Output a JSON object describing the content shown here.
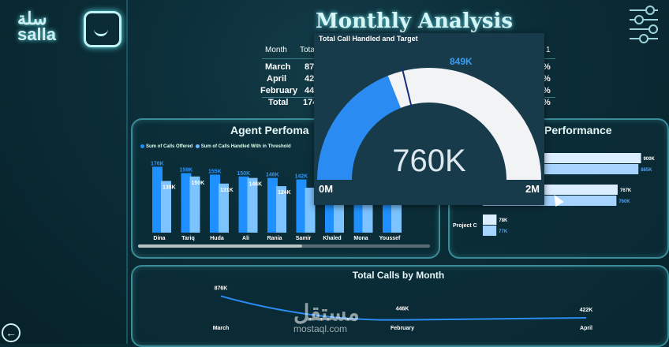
{
  "header": {
    "title": "Monthly Analysis"
  },
  "brand": {
    "logo_text": "سلة salla"
  },
  "monthly_table": {
    "headers": [
      "Month",
      "Tota",
      "1"
    ],
    "rows": [
      {
        "month": "March",
        "total": "87",
        "pct": "%"
      },
      {
        "month": "April",
        "total": "42",
        "pct": "%"
      },
      {
        "month": "February",
        "total": "44",
        "pct": "%"
      },
      {
        "month": "Total",
        "total": "174",
        "pct": "%"
      }
    ]
  },
  "agent_panel": {
    "title": "Agent Perfoma",
    "legend": [
      "Sum of Calls Offered",
      "Sum of Calls Handled With in Threshold"
    ]
  },
  "project_panel": {
    "title": "Performance",
    "project_c_label": "Project C"
  },
  "gauge": {
    "title": "Total Call Handled and Target",
    "value_label": "760K",
    "target_label": "849K",
    "min_label": "0M",
    "max_label": "2M",
    "value": 760,
    "target": 849,
    "max": 2000
  },
  "calls_panel": {
    "title": "Total Calls by Month"
  },
  "watermark": {
    "arabic": "مستقل",
    "latin": "mostaql.com"
  },
  "colors": {
    "offered": "#1e90ff",
    "handled": "#7cc3ff",
    "gauge_fill": "#2a8cf3",
    "gauge_empty": "#f1f3f5"
  },
  "chart_data": [
    {
      "type": "bar",
      "title": "Agent Perfoma",
      "categories": [
        "Dina",
        "Tariq",
        "Huda",
        "Ali",
        "Rania",
        "Samir",
        "Khaled",
        "Mona",
        "Youssef"
      ],
      "series": [
        {
          "name": "Sum of Calls Offered",
          "values": [
            176,
            159,
            155,
            150,
            146,
            142,
            120,
            112,
            100
          ],
          "labels": [
            "176K",
            "159K",
            "155K",
            "150K",
            "146K",
            "142K",
            "",
            "",
            ""
          ]
        },
        {
          "name": "Sum of Calls Handled With in Threshold",
          "values": [
            138,
            150,
            131,
            146,
            124,
            120,
            108,
            100,
            88
          ],
          "labels": [
            "138K",
            "150K",
            "131K",
            "146K",
            "124K",
            "",
            "",
            "",
            ""
          ]
        }
      ]
    },
    {
      "type": "bar",
      "title": "Performance",
      "categories": [
        "",
        "",
        "Project C"
      ],
      "series": [
        {
          "values": [
            900,
            767,
            78
          ],
          "labels": [
            "900K",
            "767K",
            "78K"
          ]
        },
        {
          "values": [
            885,
            760,
            77
          ],
          "labels": [
            "885K",
            "760K",
            "77K"
          ]
        }
      ]
    },
    {
      "type": "line",
      "title": "Total Calls by Month",
      "categories": [
        "March",
        "February",
        "April"
      ],
      "values": [
        876,
        446,
        422
      ],
      "labels": [
        "876K",
        "446K",
        "422K"
      ]
    }
  ]
}
